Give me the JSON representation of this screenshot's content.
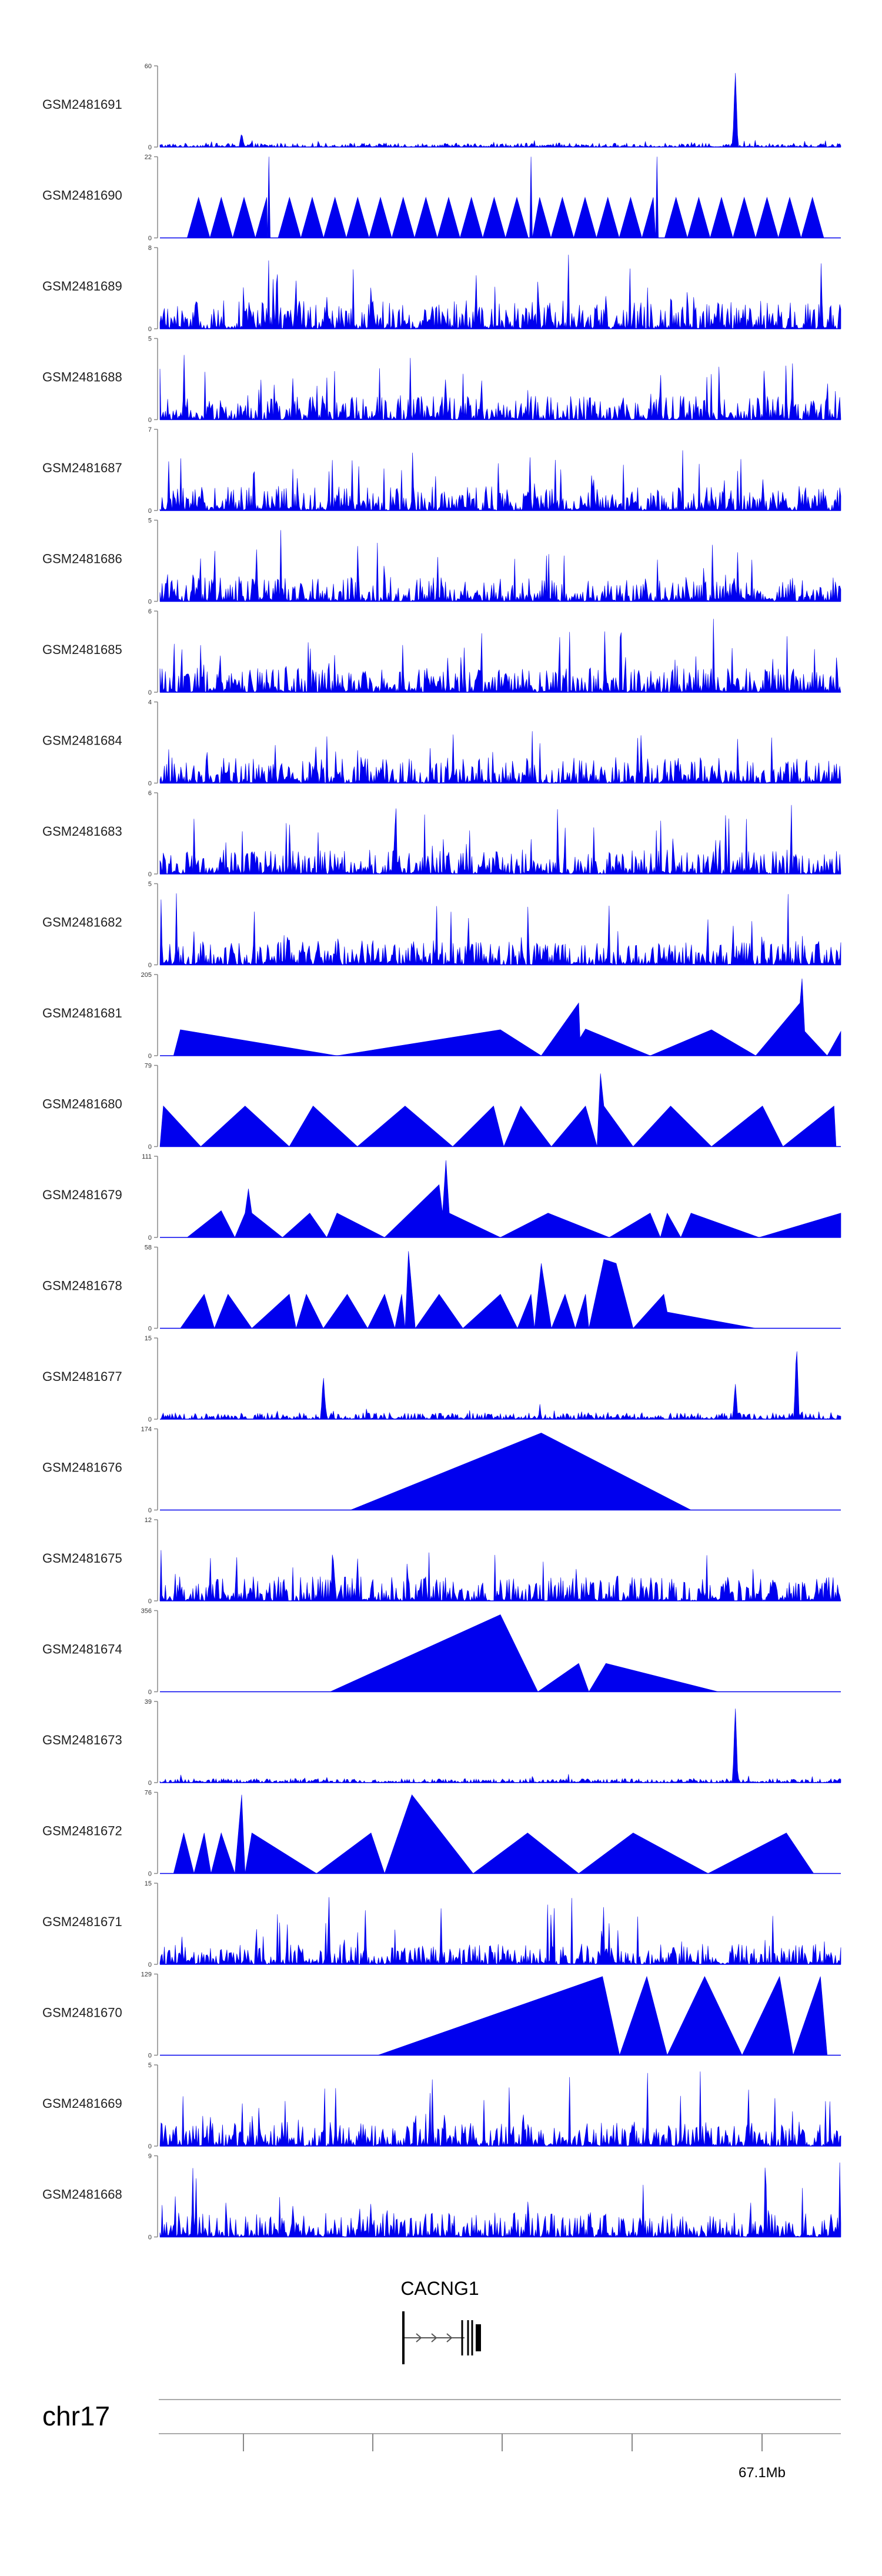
{
  "chart_data": {
    "type": "area",
    "title": "",
    "color": "#0000ee",
    "region_end_label": "67.1Mb",
    "chromosome": "chr17",
    "gene": {
      "name": "CACNG1",
      "strand": "+"
    },
    "x_range": [
      0,
      1
    ],
    "tracks": [
      {
        "sample": "GSM2481691",
        "ymax": "60",
        "ymin": "0",
        "kind": "signal",
        "noise": 0.05,
        "peaks": [
          [
            0.12,
            0.18
          ],
          [
            0.845,
            0.95
          ]
        ]
      },
      {
        "sample": "GSM2481690",
        "ymax": "22",
        "ymin": "0",
        "kind": "spiky-triangles",
        "start": 0.04,
        "end": 0.975,
        "n": 28,
        "h": 0.5,
        "spikes": [
          [
            0.16,
            1.0
          ],
          [
            0.545,
            1.0
          ],
          [
            0.73,
            1.0
          ]
        ]
      },
      {
        "sample": "GSM2481689",
        "ymax": "8",
        "ymin": "0",
        "kind": "noise",
        "level": 0.35
      },
      {
        "sample": "GSM2481688",
        "ymax": "5",
        "ymin": "0",
        "kind": "noise",
        "level": 0.3
      },
      {
        "sample": "GSM2481687",
        "ymax": "7",
        "ymin": "0",
        "kind": "noise",
        "level": 0.3
      },
      {
        "sample": "GSM2481686",
        "ymax": "5",
        "ymin": "0",
        "kind": "noise",
        "level": 0.3
      },
      {
        "sample": "GSM2481685",
        "ymax": "6",
        "ymin": "0",
        "kind": "noise",
        "level": 0.3
      },
      {
        "sample": "GSM2481684",
        "ymax": "4",
        "ymin": "0",
        "kind": "noise",
        "level": 0.32
      },
      {
        "sample": "GSM2481683",
        "ymax": "6",
        "ymin": "0",
        "kind": "noise",
        "level": 0.3
      },
      {
        "sample": "GSM2481682",
        "ymax": "5",
        "ymin": "0",
        "kind": "noise",
        "level": 0.3
      },
      {
        "sample": "GSM2481681",
        "ymax": "205",
        "ymin": "0",
        "kind": "polyline",
        "points": [
          [
            0.02,
            0
          ],
          [
            0.03,
            0.32
          ],
          [
            0.26,
            0
          ],
          [
            0.5,
            0.32
          ],
          [
            0.56,
            0
          ],
          [
            0.615,
            0.65
          ],
          [
            0.617,
            0.22
          ],
          [
            0.625,
            0.33
          ],
          [
            0.72,
            0
          ],
          [
            0.81,
            0.32
          ],
          [
            0.875,
            0
          ],
          [
            0.94,
            0.65
          ],
          [
            0.943,
            0.95
          ],
          [
            0.947,
            0.3
          ],
          [
            0.98,
            0
          ],
          [
            1.0,
            0.3
          ],
          [
            1.0,
            0
          ]
        ]
      },
      {
        "sample": "GSM2481680",
        "ymax": "79",
        "ymin": "0",
        "kind": "polyline",
        "points": [
          [
            0.0,
            0
          ],
          [
            0.005,
            0.5
          ],
          [
            0.06,
            0
          ],
          [
            0.125,
            0.5
          ],
          [
            0.19,
            0
          ],
          [
            0.225,
            0.5
          ],
          [
            0.29,
            0
          ],
          [
            0.36,
            0.5
          ],
          [
            0.43,
            0
          ],
          [
            0.49,
            0.5
          ],
          [
            0.505,
            0
          ],
          [
            0.53,
            0.5
          ],
          [
            0.575,
            0
          ],
          [
            0.625,
            0.5
          ],
          [
            0.642,
            0.0
          ],
          [
            0.647,
            0.9
          ],
          [
            0.652,
            0.5
          ],
          [
            0.695,
            0
          ],
          [
            0.75,
            0.5
          ],
          [
            0.81,
            0
          ],
          [
            0.885,
            0.5
          ],
          [
            0.915,
            0
          ],
          [
            0.99,
            0.5
          ],
          [
            0.993,
            0
          ]
        ]
      },
      {
        "sample": "GSM2481679",
        "ymax": "111",
        "ymin": "0",
        "kind": "polyline",
        "points": [
          [
            0.04,
            0
          ],
          [
            0.09,
            0.33
          ],
          [
            0.11,
            0
          ],
          [
            0.125,
            0.3
          ],
          [
            0.13,
            0.6
          ],
          [
            0.135,
            0.3
          ],
          [
            0.18,
            0
          ],
          [
            0.22,
            0.3
          ],
          [
            0.245,
            0
          ],
          [
            0.26,
            0.3
          ],
          [
            0.33,
            0
          ],
          [
            0.41,
            0.65
          ],
          [
            0.415,
            0.3
          ],
          [
            0.42,
            0.95
          ],
          [
            0.425,
            0.3
          ],
          [
            0.5,
            0
          ],
          [
            0.57,
            0.3
          ],
          [
            0.66,
            0
          ],
          [
            0.72,
            0.3
          ],
          [
            0.735,
            0
          ],
          [
            0.745,
            0.3
          ],
          [
            0.765,
            0
          ],
          [
            0.78,
            0.3
          ],
          [
            0.88,
            0
          ],
          [
            1.0,
            0.3
          ],
          [
            1.0,
            0
          ]
        ]
      },
      {
        "sample": "GSM2481678",
        "ymax": "58",
        "ymin": "0",
        "kind": "polyline",
        "points": [
          [
            0.03,
            0
          ],
          [
            0.065,
            0.42
          ],
          [
            0.08,
            0
          ],
          [
            0.1,
            0.42
          ],
          [
            0.135,
            0
          ],
          [
            0.19,
            0.42
          ],
          [
            0.2,
            0
          ],
          [
            0.215,
            0.42
          ],
          [
            0.24,
            0
          ],
          [
            0.275,
            0.42
          ],
          [
            0.305,
            0
          ],
          [
            0.33,
            0.42
          ],
          [
            0.345,
            0
          ],
          [
            0.355,
            0.42
          ],
          [
            0.36,
            0
          ],
          [
            0.365,
            0.95
          ],
          [
            0.375,
            0
          ],
          [
            0.41,
            0.42
          ],
          [
            0.445,
            0
          ],
          [
            0.5,
            0.42
          ],
          [
            0.525,
            0
          ],
          [
            0.545,
            0.42
          ],
          [
            0.55,
            0
          ],
          [
            0.56,
            0.8
          ],
          [
            0.575,
            0
          ],
          [
            0.595,
            0.42
          ],
          [
            0.61,
            0
          ],
          [
            0.625,
            0.42
          ],
          [
            0.63,
            0
          ],
          [
            0.652,
            0.85
          ],
          [
            0.67,
            0.8
          ],
          [
            0.695,
            0
          ],
          [
            0.74,
            0.42
          ],
          [
            0.745,
            0.2
          ],
          [
            0.875,
            0
          ]
        ]
      },
      {
        "sample": "GSM2481677",
        "ymax": "15",
        "ymin": "0",
        "kind": "signal",
        "noise": 0.08,
        "peaks": [
          [
            0.24,
            0.55
          ],
          [
            0.845,
            0.45
          ],
          [
            0.935,
            0.95
          ]
        ]
      },
      {
        "sample": "GSM2481676",
        "ymax": "174",
        "ymin": "0",
        "kind": "polyline",
        "points": [
          [
            0.28,
            0
          ],
          [
            0.56,
            0.95
          ],
          [
            0.78,
            0
          ]
        ]
      },
      {
        "sample": "GSM2481675",
        "ymax": "12",
        "ymin": "0",
        "kind": "noise",
        "level": 0.3
      },
      {
        "sample": "GSM2481674",
        "ymax": "356",
        "ymin": "0",
        "kind": "polyline",
        "points": [
          [
            0.25,
            0
          ],
          [
            0.5,
            0.95
          ],
          [
            0.555,
            0
          ],
          [
            0.615,
            0.35
          ],
          [
            0.63,
            0
          ],
          [
            0.655,
            0.35
          ],
          [
            0.82,
            0
          ]
        ]
      },
      {
        "sample": "GSM2481673",
        "ymax": "39",
        "ymin": "0",
        "kind": "signal",
        "noise": 0.05,
        "peaks": [
          [
            0.845,
            0.95
          ]
        ]
      },
      {
        "sample": "GSM2481672",
        "ymax": "76",
        "ymin": "0",
        "kind": "polyline",
        "points": [
          [
            0.02,
            0
          ],
          [
            0.035,
            0.5
          ],
          [
            0.05,
            0
          ],
          [
            0.065,
            0.5
          ],
          [
            0.075,
            0
          ],
          [
            0.09,
            0.5
          ],
          [
            0.11,
            0
          ],
          [
            0.12,
            0.97
          ],
          [
            0.125,
            0
          ],
          [
            0.135,
            0.5
          ],
          [
            0.23,
            0
          ],
          [
            0.31,
            0.5
          ],
          [
            0.33,
            0
          ],
          [
            0.37,
            0.97
          ],
          [
            0.46,
            0
          ],
          [
            0.54,
            0.5
          ],
          [
            0.615,
            0
          ],
          [
            0.695,
            0.5
          ],
          [
            0.805,
            0
          ],
          [
            0.92,
            0.5
          ],
          [
            0.96,
            0
          ]
        ]
      },
      {
        "sample": "GSM2481671",
        "ymax": "15",
        "ymin": "0",
        "kind": "noise",
        "level": 0.25
      },
      {
        "sample": "GSM2481670",
        "ymax": "129",
        "ymin": "0",
        "kind": "polyline",
        "points": [
          [
            0.32,
            0
          ],
          [
            0.65,
            0.97
          ],
          [
            0.675,
            0
          ],
          [
            0.715,
            0.97
          ],
          [
            0.745,
            0
          ],
          [
            0.8,
            0.97
          ],
          [
            0.855,
            0
          ],
          [
            0.91,
            0.97
          ],
          [
            0.93,
            0
          ],
          [
            0.97,
            0.97
          ],
          [
            0.98,
            0
          ]
        ]
      },
      {
        "sample": "GSM2481669",
        "ymax": "5",
        "ymin": "0",
        "kind": "noise",
        "level": 0.3
      },
      {
        "sample": "GSM2481668",
        "ymax": "9",
        "ymin": "0",
        "kind": "noise",
        "level": 0.3
      }
    ]
  }
}
